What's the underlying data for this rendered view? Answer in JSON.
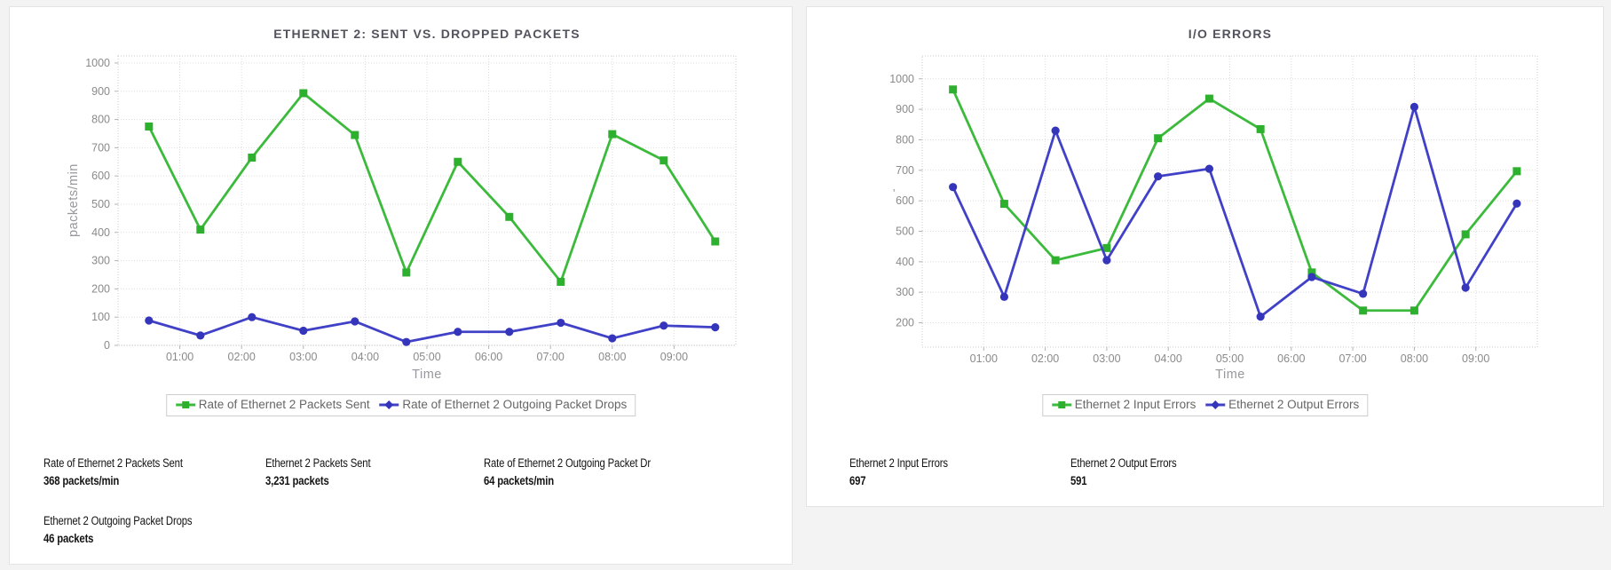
{
  "window": {
    "background": "#f3f3f4",
    "panel_background": "#ffffff",
    "panel_border": "#e4e4e6"
  },
  "colors": {
    "series_green": "#3cba3c",
    "series_green_marker": "#2db02d",
    "series_blue": "#4141c8",
    "series_blue_marker": "#3535bb",
    "grid": "#dcdcdc",
    "tick_text": "#8a8a8a",
    "title_text": "#53535e",
    "legend_text": "#666666",
    "stat_text": "#141414"
  },
  "chart_data": [
    {
      "type": "line",
      "title": "ETHERNET 2: SENT VS. DROPPED PACKETS",
      "xlabel": "Time",
      "ylabel": "packets/min",
      "x_tick_labels": [
        "01:00",
        "02:00",
        "03:00",
        "04:00",
        "05:00",
        "06:00",
        "07:00",
        "08:00",
        "09:00"
      ],
      "x_tick_minutes": [
        60,
        120,
        180,
        240,
        300,
        360,
        420,
        480,
        540
      ],
      "point_minutes": [
        30,
        80,
        130,
        180,
        230,
        280,
        330,
        380,
        430,
        480,
        530,
        580
      ],
      "xlim_minutes": [
        0,
        600
      ],
      "y_ticks": [
        0,
        100,
        200,
        300,
        400,
        500,
        600,
        700,
        800,
        900,
        1000
      ],
      "ylim": [
        0,
        1025
      ],
      "grid": true,
      "legend_position": "bottom",
      "series": [
        {
          "name": "Rate of Ethernet 2 Packets Sent",
          "color": "#3cba3c",
          "marker_color": "#2db02d",
          "marker": "square",
          "values": [
            775,
            410,
            665,
            893,
            745,
            258,
            650,
            455,
            225,
            748,
            655,
            368
          ]
        },
        {
          "name": "Rate of Ethernet 2 Outgoing Packet Drops",
          "color": "#4141c8",
          "marker_color": "#3535bb",
          "marker": "circle",
          "values": [
            88,
            35,
            100,
            52,
            85,
            12,
            48,
            48,
            80,
            25,
            70,
            64
          ]
        }
      ]
    },
    {
      "type": "line",
      "title": "I/O ERRORS",
      "xlabel": "Time",
      "ylabel": "'",
      "x_tick_labels": [
        "01:00",
        "02:00",
        "03:00",
        "04:00",
        "05:00",
        "06:00",
        "07:00",
        "08:00",
        "09:00"
      ],
      "x_tick_minutes": [
        60,
        120,
        180,
        240,
        300,
        360,
        420,
        480,
        540
      ],
      "point_minutes": [
        30,
        80,
        130,
        180,
        230,
        280,
        330,
        380,
        430,
        480,
        530,
        580
      ],
      "xlim_minutes": [
        0,
        600
      ],
      "y_ticks": [
        200,
        300,
        400,
        500,
        600,
        700,
        800,
        900,
        1000
      ],
      "ylim": [
        120,
        1075
      ],
      "grid": true,
      "legend_position": "bottom",
      "series": [
        {
          "name": "Ethernet 2 Input Errors",
          "color": "#3cba3c",
          "marker_color": "#2db02d",
          "marker": "square",
          "values": [
            965,
            590,
            405,
            445,
            805,
            935,
            835,
            365,
            240,
            240,
            490,
            697
          ]
        },
        {
          "name": "Ethernet 2 Output Errors",
          "color": "#4141c8",
          "marker_color": "#3535bb",
          "marker": "circle",
          "values": [
            645,
            285,
            830,
            405,
            680,
            705,
            220,
            350,
            295,
            908,
            315,
            591
          ]
        }
      ]
    }
  ],
  "panels": [
    {
      "stats": [
        {
          "label": "Rate of Ethernet 2 Packets Sent",
          "value": "368 packets/min"
        },
        {
          "label": "Ethernet 2 Packets Sent",
          "value": "3,231 packets"
        },
        {
          "label": "Rate of Ethernet 2 Outgoing Packet Dr",
          "value": "64 packets/min"
        },
        {
          "label": "Ethernet 2 Outgoing Packet Drops",
          "value": "46 packets"
        }
      ]
    },
    {
      "stats": [
        {
          "label": "Ethernet 2 Input Errors",
          "value": "697"
        },
        {
          "label": "Ethernet 2 Output Errors",
          "value": "591"
        }
      ]
    }
  ]
}
